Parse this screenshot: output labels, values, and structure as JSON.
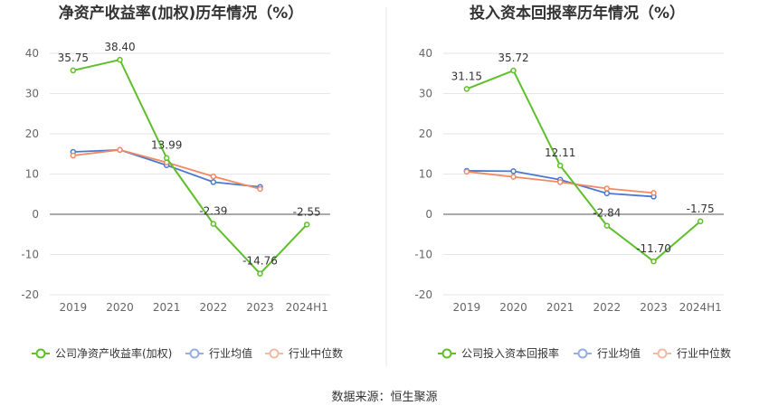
{
  "source_label": "数据来源：恒生聚源",
  "chart_data": [
    {
      "type": "line",
      "title": "净资产收益率(加权)历年情况（%）",
      "categories": [
        "2019",
        "2020",
        "2021",
        "2022",
        "2023",
        "2024H1"
      ],
      "ylim": [
        -20,
        40
      ],
      "yticks": [
        40,
        30,
        20,
        10,
        0,
        -10,
        -20
      ],
      "grid": true,
      "legend_position": "bottom",
      "series": [
        {
          "name": "公司净资产收益率(加权)",
          "color": "#5fbf2a",
          "values": [
            35.75,
            38.4,
            13.99,
            -2.39,
            -14.76,
            -2.55
          ],
          "labels": [
            "35.75",
            "38.40",
            "13.99",
            "-2.39",
            "-14.76",
            "-2.55"
          ]
        },
        {
          "name": "行业均值",
          "color": "#4a78d0",
          "values": [
            15.5,
            16.0,
            12.2,
            8.0,
            6.8,
            null
          ]
        },
        {
          "name": "行业中位数",
          "color": "#f08a63",
          "values": [
            14.6,
            16.0,
            12.9,
            9.4,
            6.3,
            null
          ]
        }
      ]
    },
    {
      "type": "line",
      "title": "投入资本回报率历年情况（%）",
      "categories": [
        "2019",
        "2020",
        "2021",
        "2022",
        "2023",
        "2024H1"
      ],
      "ylim": [
        -20,
        40
      ],
      "yticks": [
        40,
        30,
        20,
        10,
        0,
        -10,
        -20
      ],
      "grid": true,
      "legend_position": "bottom",
      "series": [
        {
          "name": "公司投入资本回报率",
          "color": "#5fbf2a",
          "values": [
            31.15,
            35.72,
            12.11,
            -2.84,
            -11.7,
            -1.75
          ],
          "labels": [
            "31.15",
            "35.72",
            "12.11",
            "-2.84",
            "-11.70",
            "-1.75"
          ]
        },
        {
          "name": "行业均值",
          "color": "#4a78d0",
          "values": [
            10.8,
            10.7,
            8.6,
            5.2,
            4.4,
            null
          ]
        },
        {
          "name": "行业中位数",
          "color": "#f08a63",
          "values": [
            10.6,
            9.3,
            8.0,
            6.4,
            5.3,
            null
          ]
        }
      ]
    }
  ]
}
